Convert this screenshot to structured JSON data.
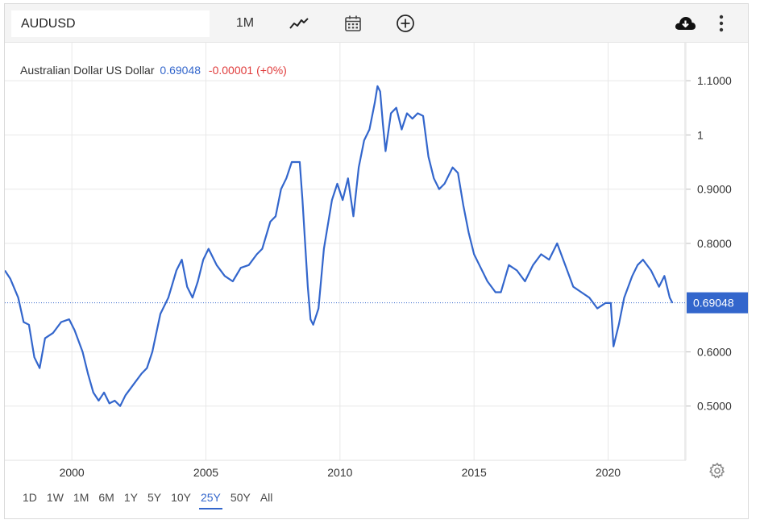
{
  "toolbar": {
    "symbol": "AUDUSD",
    "interval": "1M",
    "icons": [
      "line-chart-icon",
      "calendar-icon",
      "plus-circle-icon",
      "cloud-download-icon",
      "more-vertical-icon"
    ]
  },
  "legend": {
    "name": "Australian Dollar US Dollar",
    "price": "0.69048",
    "change": "-0.00001 (+0%)"
  },
  "ranges": [
    "1D",
    "1W",
    "1M",
    "6M",
    "1Y",
    "5Y",
    "10Y",
    "25Y",
    "50Y",
    "All"
  ],
  "active_range": "25Y",
  "colors": {
    "line": "#3366cc",
    "negative": "#e03c3c",
    "grid": "#e8e8e8",
    "badge": "#3366cc"
  },
  "chart_data": {
    "type": "line",
    "series": [
      {
        "name": "Australian Dollar US Dollar",
        "x": [
          1997.5,
          1997.7,
          1998.0,
          1998.2,
          1998.4,
          1998.6,
          1998.8,
          1999.0,
          1999.3,
          1999.6,
          1999.9,
          2000.1,
          2000.4,
          2000.6,
          2000.8,
          2001.0,
          2001.2,
          2001.4,
          2001.6,
          2001.8,
          2002.0,
          2002.3,
          2002.6,
          2002.8,
          2003.0,
          2003.3,
          2003.6,
          2003.9,
          2004.1,
          2004.3,
          2004.5,
          2004.7,
          2004.9,
          2005.1,
          2005.4,
          2005.7,
          2006.0,
          2006.3,
          2006.6,
          2006.9,
          2007.1,
          2007.4,
          2007.6,
          2007.8,
          2008.0,
          2008.2,
          2008.5,
          2008.6,
          2008.8,
          2008.9,
          2009.0,
          2009.2,
          2009.4,
          2009.7,
          2009.9,
          2010.1,
          2010.3,
          2010.5,
          2010.7,
          2010.9,
          2011.1,
          2011.3,
          2011.4,
          2011.5,
          2011.6,
          2011.7,
          2011.9,
          2012.1,
          2012.3,
          2012.5,
          2012.7,
          2012.9,
          2013.1,
          2013.3,
          2013.5,
          2013.7,
          2013.9,
          2014.2,
          2014.4,
          2014.6,
          2014.8,
          2015.0,
          2015.2,
          2015.5,
          2015.8,
          2016.0,
          2016.3,
          2016.6,
          2016.9,
          2017.2,
          2017.5,
          2017.8,
          2018.1,
          2018.4,
          2018.7,
          2019.0,
          2019.3,
          2019.6,
          2019.9,
          2020.1,
          2020.2,
          2020.4,
          2020.6,
          2020.9,
          2021.1,
          2021.3,
          2021.6,
          2021.9,
          2022.1,
          2022.3,
          2022.4
        ],
        "values": [
          0.75,
          0.735,
          0.7,
          0.655,
          0.65,
          0.59,
          0.57,
          0.625,
          0.635,
          0.655,
          0.66,
          0.64,
          0.6,
          0.56,
          0.525,
          0.51,
          0.525,
          0.505,
          0.51,
          0.5,
          0.52,
          0.54,
          0.56,
          0.57,
          0.6,
          0.67,
          0.7,
          0.75,
          0.77,
          0.72,
          0.7,
          0.73,
          0.77,
          0.79,
          0.76,
          0.74,
          0.73,
          0.755,
          0.76,
          0.78,
          0.79,
          0.84,
          0.85,
          0.9,
          0.92,
          0.95,
          0.95,
          0.88,
          0.72,
          0.66,
          0.65,
          0.68,
          0.79,
          0.88,
          0.91,
          0.88,
          0.92,
          0.85,
          0.94,
          0.99,
          1.01,
          1.06,
          1.09,
          1.08,
          1.02,
          0.97,
          1.04,
          1.05,
          1.01,
          1.04,
          1.03,
          1.04,
          1.035,
          0.96,
          0.92,
          0.9,
          0.91,
          0.94,
          0.93,
          0.87,
          0.82,
          0.78,
          0.76,
          0.73,
          0.71,
          0.71,
          0.76,
          0.75,
          0.73,
          0.76,
          0.78,
          0.77,
          0.8,
          0.76,
          0.72,
          0.71,
          0.7,
          0.68,
          0.69,
          0.69,
          0.61,
          0.65,
          0.7,
          0.74,
          0.76,
          0.77,
          0.75,
          0.72,
          0.74,
          0.7,
          0.69
        ]
      }
    ],
    "xlim": [
      1997.5,
      2022.9
    ],
    "ylim": [
      0.4,
      1.17
    ],
    "x_ticks": [
      "2000",
      "2005",
      "2010",
      "2015",
      "2020"
    ],
    "y_ticks": [
      "1.1000",
      "1",
      "0.9000",
      "0.8000",
      "0.6000",
      "0.5000"
    ],
    "last_value_label": "0.69048",
    "last_value_line": 0.69048,
    "grid": true
  }
}
